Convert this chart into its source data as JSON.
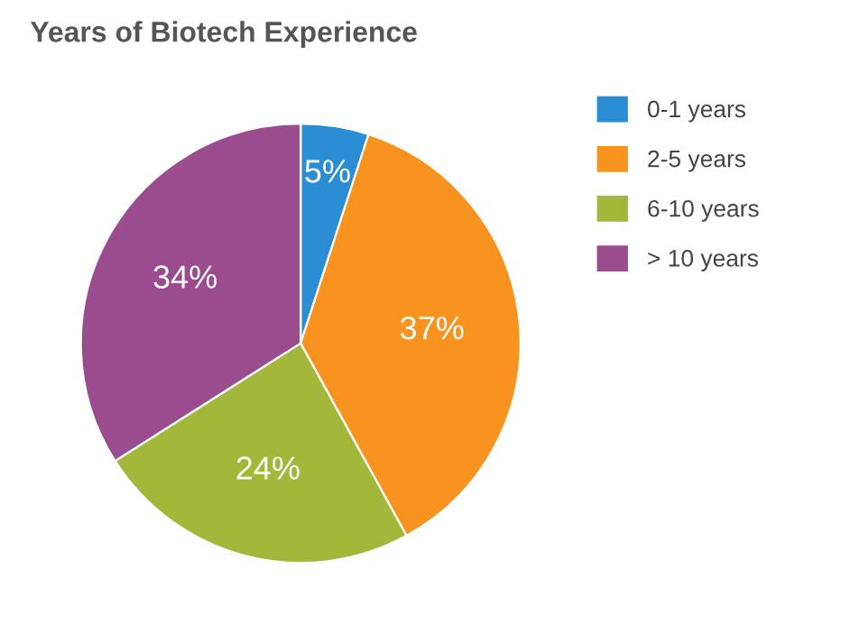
{
  "chart_data": {
    "type": "pie",
    "title": "Years of Biotech Experience",
    "categories": [
      "0-1 years",
      "2-5 years",
      "6-10 years",
      "> 10 years"
    ],
    "values": [
      5,
      37,
      24,
      34
    ],
    "value_labels": [
      "5%",
      "37%",
      "24%",
      "34%"
    ],
    "colors": [
      "#2b8ed4",
      "#f7931e",
      "#a3b83a",
      "#9a4c8e"
    ],
    "legend": "top right"
  }
}
